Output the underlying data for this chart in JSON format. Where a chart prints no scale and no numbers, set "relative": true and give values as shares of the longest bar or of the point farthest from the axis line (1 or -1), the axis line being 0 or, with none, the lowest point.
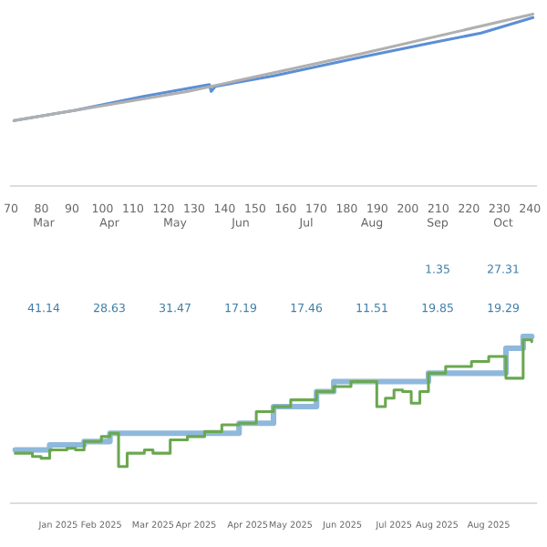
{
  "chart_data": [
    {
      "type": "line",
      "relative": true,
      "xlim": [
        70,
        242
      ],
      "xticks": [
        70,
        80,
        90,
        100,
        110,
        120,
        130,
        140,
        150,
        160,
        170,
        180,
        190,
        200,
        210,
        220,
        230,
        240
      ],
      "tick_labels": "x",
      "series": [
        {
          "color": "#5b8fd6",
          "x": [
            71,
            91,
            113,
            135,
            135.6,
            137,
            156,
            185,
            207,
            224,
            241
          ],
          "values": [
            0.38,
            0.44,
            0.52,
            0.59,
            0.55,
            0.58,
            0.64,
            0.75,
            0.83,
            0.89,
            0.98
          ]
        },
        {
          "color": "#b0b0b0",
          "x": [
            71,
            128,
            185,
            241
          ],
          "values": [
            0.38,
            0.55,
            0.77,
            1
          ]
        }
      ]
    },
    {
      "type": "other",
      "categories": [
        "Mar",
        "Apr",
        "May",
        "Jun",
        "Jul",
        "Aug",
        "Sep",
        "Oct"
      ],
      "data_labels": true,
      "series": [
        {
          "color": "#3d7ea6",
          "values": [
            null,
            null,
            null,
            null,
            null,
            null,
            1.35,
            27.31
          ]
        },
        {
          "color": "#3d7ea6",
          "values": [
            41.14,
            28.63,
            31.47,
            17.19,
            17.46,
            11.51,
            19.85,
            19.29
          ]
        }
      ]
    },
    {
      "type": "step",
      "relative": true,
      "tick_labels": "x",
      "categories": [
        null,
        null,
        null,
        null,
        null,
        "Jan 2025",
        null,
        null,
        null,
        null,
        "Feb 2025",
        null,
        null,
        null,
        null,
        null,
        "Mar 2025",
        null,
        null,
        null,
        null,
        "Apr 2025",
        null,
        null,
        null,
        null,
        null,
        "Apr 2025",
        null,
        null,
        null,
        null,
        "May 2025",
        null,
        null,
        null,
        null,
        null,
        "Jun 2025",
        null,
        null,
        null,
        null,
        null,
        "Jul 2025",
        null,
        null,
        null,
        null,
        "Aug 2025",
        null,
        null,
        null,
        null,
        null,
        "Aug 2025",
        null,
        null,
        null,
        null,
        null
      ],
      "series": [
        {
          "color": "#8fb8dc",
          "values": [
            0.32,
            0.32,
            0.32,
            0.32,
            0.35,
            0.35,
            0.35,
            0.35,
            0.37,
            0.37,
            0.37,
            0.42,
            0.42,
            0.42,
            0.42,
            0.42,
            0.42,
            0.42,
            0.42,
            0.42,
            0.42,
            0.42,
            0.42,
            0.42,
            0.42,
            0.42,
            0.48,
            0.48,
            0.48,
            0.48,
            0.58,
            0.58,
            0.58,
            0.58,
            0.58,
            0.67,
            0.67,
            0.73,
            0.73,
            0.73,
            0.73,
            0.73,
            0.73,
            0.73,
            0.73,
            0.73,
            0.73,
            0.73,
            0.78,
            0.78,
            0.78,
            0.78,
            0.78,
            0.78,
            0.78,
            0.78,
            0.78,
            0.93,
            0.93,
            1,
            1
          ]
        },
        {
          "color": "#6aa84f",
          "values": [
            0.3,
            0.3,
            0.28,
            0.27,
            0.32,
            0.32,
            0.33,
            0.32,
            0.37,
            0.37,
            0.4,
            0.42,
            0.22,
            0.3,
            0.3,
            0.32,
            0.3,
            0.3,
            0.38,
            0.38,
            0.4,
            0.4,
            0.43,
            0.43,
            0.47,
            0.47,
            0.48,
            0.48,
            0.55,
            0.55,
            0.58,
            0.58,
            0.62,
            0.62,
            0.62,
            0.67,
            0.67,
            0.7,
            0.7,
            0.73,
            0.73,
            0.73,
            0.58,
            0.63,
            0.68,
            0.67,
            0.6,
            0.67,
            0.78,
            0.78,
            0.82,
            0.82,
            0.82,
            0.85,
            0.85,
            0.88,
            0.88,
            0.75,
            0.75,
            0.98,
            0.97
          ]
        }
      ]
    }
  ]
}
